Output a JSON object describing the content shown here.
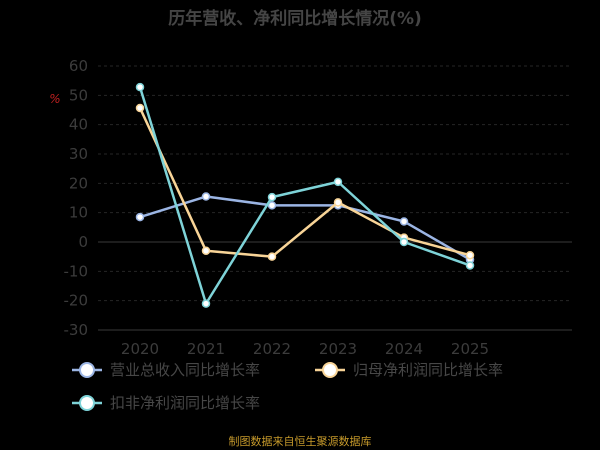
{
  "chart_data": {
    "type": "line",
    "title": "历年营收、净利同比增长情况(%)",
    "ylabel": "%",
    "x": [
      "2020",
      "2021",
      "2022",
      "2023",
      "2024",
      "2025"
    ],
    "ylim": [
      -30,
      60
    ],
    "yticks": [
      -30,
      -20,
      -10,
      0,
      10,
      20,
      30,
      40,
      50,
      60
    ],
    "grid": true,
    "legend_position": "bottom",
    "series": [
      {
        "name": "营业总收入同比增长率",
        "color": "#9bb5e4",
        "values": [
          8.5,
          15.5,
          12.5,
          12.5,
          7.0,
          -6.0
        ]
      },
      {
        "name": "归母净利润同比增长率",
        "color": "#f8d497",
        "values": [
          45.7,
          -3.0,
          -5.0,
          13.5,
          1.5,
          -4.5
        ]
      },
      {
        "name": "扣非净利润同比增长率",
        "color": "#7ed3d8",
        "values": [
          52.8,
          -21.0,
          15.3,
          20.5,
          0.0,
          -8.0
        ]
      }
    ],
    "source": "制图数据来自恒生聚源数据库"
  }
}
